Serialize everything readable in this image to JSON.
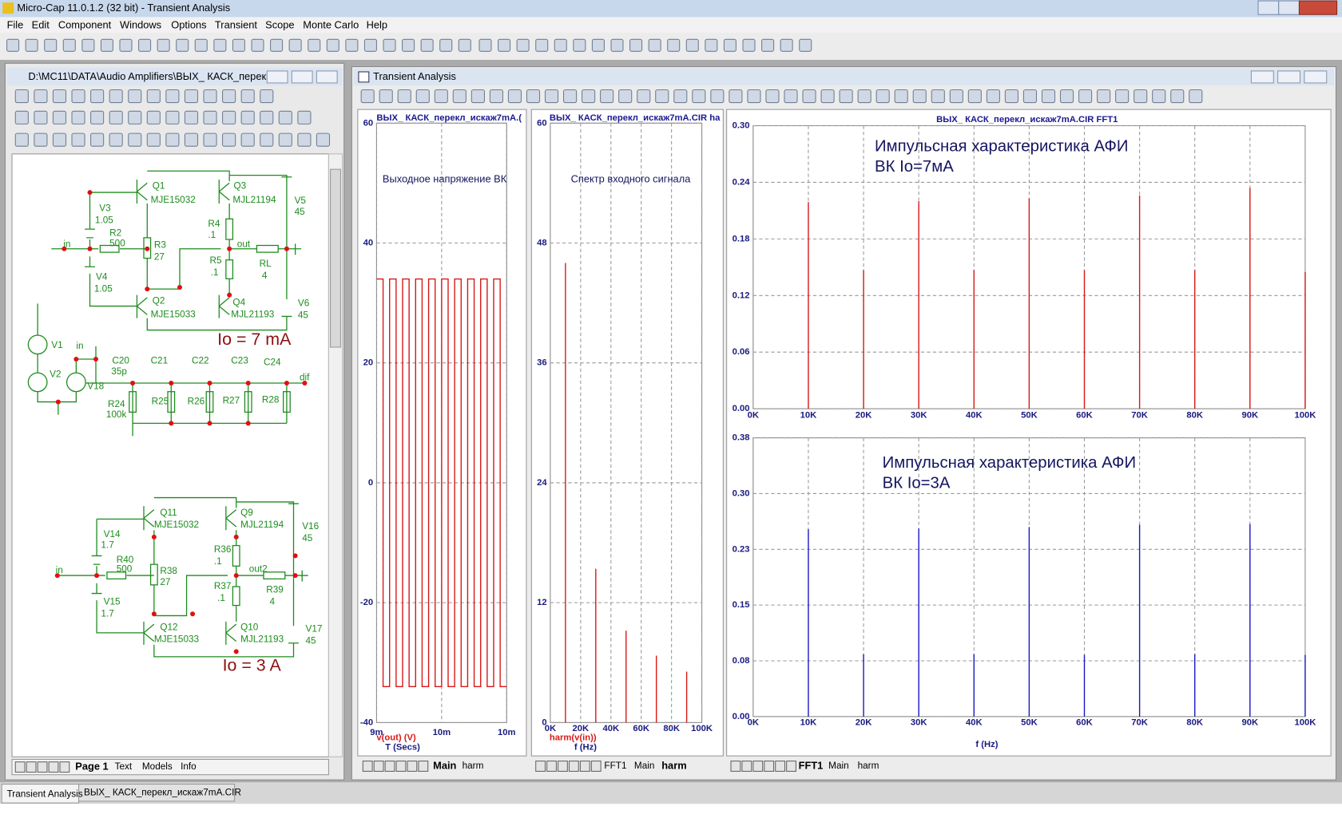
{
  "window": {
    "title": "Micro-Cap 11.0.1.2 (32 bit) - Transient Analysis"
  },
  "menu": [
    "File",
    "Edit",
    "Component",
    "Windows",
    "Options",
    "Transient",
    "Scope",
    "Monte Carlo",
    "Help"
  ],
  "schematic_window": {
    "title": "D:\\MC11\\DATA\\Audio Amplifiers\\ВЫХ_ КАСК_перек...",
    "labels": [
      "Q1",
      "MJE15032",
      "Q3",
      "MJL21194",
      "V3",
      "1.05",
      "R2",
      "500",
      "in",
      "R3",
      "27",
      "R4",
      ".1",
      "out",
      "V5",
      "45",
      "R5",
      ".1",
      "RL",
      "4",
      "V4",
      "1.05",
      "Q2",
      "MJE15033",
      "Q4",
      "MJL21193",
      "V6",
      "45",
      "V1",
      "V2",
      "in",
      "V18",
      "C20",
      "35p",
      "C21",
      "C22",
      "C23",
      "C24",
      "dif",
      "R24",
      "100k",
      "R25",
      "R26",
      "R27",
      "R28",
      "Q11",
      "MJE15032",
      "Q9",
      "MJL21194",
      "V14",
      "1.7",
      "V16",
      "45",
      "R40",
      "500",
      "in",
      "R36",
      ".1",
      "R38",
      "27",
      "out2",
      "R37",
      ".1",
      "R39",
      "4",
      "V15",
      "1.7",
      "Q12",
      "MJE15033",
      "Q10",
      "MJL21193",
      "V17",
      "45"
    ],
    "notes": [
      "Io = 7 mA",
      "Io = 3 A"
    ],
    "tabs": [
      "Page 1",
      "Text",
      "Models",
      "Info"
    ]
  },
  "analysis_window": {
    "title": "Transient Analysis",
    "tabs": [
      [
        "Main",
        "harm"
      ],
      [
        "FFT1",
        "Main",
        "harm"
      ],
      [
        "FFT1",
        "Main",
        "harm"
      ]
    ]
  },
  "chart_data": [
    {
      "type": "line",
      "title": "ВЫХ_ КАСК_перекл_искаж7mA.(",
      "annotation": [
        "Выходное напряжение ВК"
      ],
      "x_label": "T (Secs)",
      "y_label": "v(out) (V)",
      "color": "#d81818",
      "x": [
        0.0095,
        0.00955,
        0.00955,
        0.0096,
        0.0096,
        0.00965,
        0.00965,
        0.0097,
        0.0097,
        0.00975,
        0.00975,
        0.0098,
        0.0098,
        0.00985,
        0.00985,
        0.0099,
        0.0099,
        0.00995,
        0.00995,
        0.01,
        0.01,
        0.01005,
        0.01005,
        0.0101,
        0.0101,
        0.01015,
        0.01015,
        0.0102,
        0.0102,
        0.01025,
        0.01025,
        0.0103,
        0.0103,
        0.01035,
        0.01035,
        0.0104,
        0.0104,
        0.01045,
        0.01045,
        0.0105
      ],
      "values": [
        34,
        34,
        -34,
        -34,
        34,
        34,
        -34,
        -34,
        34,
        34,
        -34,
        -34,
        34,
        34,
        -34,
        -34,
        34,
        34,
        -34,
        -34,
        34,
        34,
        -34,
        -34,
        34,
        34,
        -34,
        -34,
        34,
        34,
        -34,
        -34,
        34,
        34,
        -34,
        -34,
        34,
        34,
        -34,
        -34
      ],
      "xlim": [
        0.0095,
        0.0105
      ],
      "xticks": [
        {
          "value": 0.0095,
          "label": "9m"
        },
        {
          "value": 0.01,
          "label": "10m"
        },
        {
          "value": 0.0105,
          "label": "10m"
        }
      ],
      "ylim": [
        -40,
        60
      ],
      "yticks": [
        -40,
        -20,
        0,
        20,
        40,
        60
      ],
      "grid": true
    },
    {
      "type": "spikes",
      "title": "ВЫХ_ КАСК_перекл_искаж7mA.CIR ha",
      "annotation": [
        "Спектр входного сигнала"
      ],
      "x_label": "f (Hz)",
      "y_label": "harm(v(in))",
      "color": "#d81818",
      "x": [
        10000,
        30000,
        50000,
        70000,
        90000
      ],
      "values": [
        46,
        15.4,
        9.2,
        6.7,
        5.1
      ],
      "xlim": [
        0,
        100000
      ],
      "xticks": [
        {
          "value": 0,
          "label": "0K"
        },
        {
          "value": 20000,
          "label": "20K"
        },
        {
          "value": 40000,
          "label": "40K"
        },
        {
          "value": 60000,
          "label": "60K"
        },
        {
          "value": 80000,
          "label": "80K"
        },
        {
          "value": 100000,
          "label": "100K"
        }
      ],
      "ylim": [
        0,
        60
      ],
      "yticks": [
        0,
        12,
        24,
        36,
        48,
        60
      ],
      "grid": true
    },
    {
      "type": "spikes",
      "title": "ВЫХ_ КАСК_перекл_искаж7mA.CIR FFT1",
      "annotation": [
        "Импульсная характеристика АФИ",
        "ВК Io=7мА"
      ],
      "color": "#d81818",
      "x": [
        10000,
        20000,
        30000,
        40000,
        50000,
        60000,
        70000,
        80000,
        90000,
        100000
      ],
      "values": [
        0.219,
        0.147,
        0.22,
        0.147,
        0.223,
        0.147,
        0.226,
        0.147,
        0.234,
        0.145
      ],
      "xlim": [
        0,
        100000
      ],
      "xticks": [
        {
          "value": 0,
          "label": "0K"
        },
        {
          "value": 10000,
          "label": "10K"
        },
        {
          "value": 20000,
          "label": "20K"
        },
        {
          "value": 30000,
          "label": "30K"
        },
        {
          "value": 40000,
          "label": "40K"
        },
        {
          "value": 50000,
          "label": "50K"
        },
        {
          "value": 60000,
          "label": "60K"
        },
        {
          "value": 70000,
          "label": "70K"
        },
        {
          "value": 80000,
          "label": "80K"
        },
        {
          "value": 90000,
          "label": "90K"
        },
        {
          "value": 100000,
          "label": "100K"
        }
      ],
      "ylim": [
        0,
        0.3
      ],
      "yticks": [
        {
          "value": 0,
          "label": "0.00"
        },
        {
          "value": 0.06,
          "label": "0.06"
        },
        {
          "value": 0.12,
          "label": "0.12"
        },
        {
          "value": 0.18,
          "label": "0.18"
        },
        {
          "value": 0.24,
          "label": "0.24"
        },
        {
          "value": 0.3,
          "label": "0.30"
        }
      ],
      "grid": true
    },
    {
      "type": "spikes",
      "annotation": [
        "Импульсная характеристика АФИ",
        "ВК Io=3А"
      ],
      "x_label": "f (Hz)",
      "color": "#1818c8",
      "x": [
        10000,
        20000,
        30000,
        40000,
        50000,
        60000,
        70000,
        80000,
        90000,
        100000
      ],
      "values": [
        0.252,
        0.084,
        0.253,
        0.084,
        0.255,
        0.083,
        0.258,
        0.084,
        0.259,
        0.083
      ],
      "xlim": [
        0,
        100000
      ],
      "xticks": [
        {
          "value": 0,
          "label": "0K"
        },
        {
          "value": 10000,
          "label": "10K"
        },
        {
          "value": 20000,
          "label": "20K"
        },
        {
          "value": 30000,
          "label": "30K"
        },
        {
          "value": 40000,
          "label": "40K"
        },
        {
          "value": 50000,
          "label": "50K"
        },
        {
          "value": 60000,
          "label": "60K"
        },
        {
          "value": 70000,
          "label": "70K"
        },
        {
          "value": 80000,
          "label": "80K"
        },
        {
          "value": 90000,
          "label": "90K"
        },
        {
          "value": 100000,
          "label": "100K"
        }
      ],
      "ylim": [
        0,
        0.375
      ],
      "yticks": [
        {
          "value": 0,
          "label": "0.00"
        },
        {
          "value": 0.075,
          "label": "0.08"
        },
        {
          "value": 0.15,
          "label": "0.15"
        },
        {
          "value": 0.225,
          "label": "0.23"
        },
        {
          "value": 0.3,
          "label": "0.30"
        },
        {
          "value": 0.375,
          "label": "0.38"
        }
      ],
      "grid": true
    }
  ],
  "taskbar": [
    "Transient Analysis",
    "ВЫХ_ КАСК_перекл_искаж7mA.CIR"
  ]
}
